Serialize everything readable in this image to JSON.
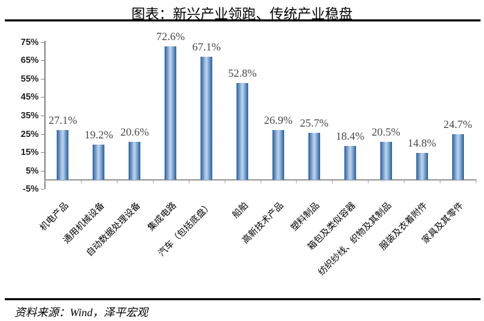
{
  "page": {
    "title": "图表：新兴产业领跑、传统产业稳盘",
    "source": "资料来源：Wind，泽平宏观"
  },
  "chart_data": {
    "type": "bar",
    "title": "图表：新兴产业领跑、传统产业稳盘",
    "categories": [
      "机电产品",
      "通用机械设备",
      "自动数据处理设备",
      "集成电路",
      "汽车（包括底盘）",
      "船舶",
      "高新技术产品",
      "塑料制品",
      "箱包及类似容器",
      "纺织纱线、织物及其制品",
      "服装及衣着附件",
      "家具及其零件"
    ],
    "values": [
      27.1,
      19.2,
      20.6,
      72.6,
      67.1,
      52.8,
      26.9,
      25.7,
      18.4,
      20.5,
      14.8,
      24.7
    ],
    "value_labels": [
      "27.1%",
      "19.2%",
      "20.6%",
      "72.6%",
      "67.1%",
      "52.8%",
      "26.9%",
      "25.7%",
      "18.4%",
      "20.5%",
      "14.8%",
      "24.7%"
    ],
    "unit": "%",
    "xlabel": "",
    "ylabel": "",
    "ylim": [
      -5,
      75
    ],
    "y_tick_values": [
      75,
      65,
      55,
      45,
      35,
      25,
      15,
      5,
      -5
    ],
    "y_tick_labels": [
      "75%",
      "65%",
      "55%",
      "45%",
      "35%",
      "25%",
      "15%",
      "5%",
      "-5%"
    ],
    "grid": false,
    "legend": false,
    "bar_colors": {
      "edge": "#30619f",
      "mid": "#4a7cb8",
      "light": "#b9cfe7"
    },
    "axis_color": "#8c8c8c",
    "source": "资料来源：Wind，泽平宏观"
  }
}
